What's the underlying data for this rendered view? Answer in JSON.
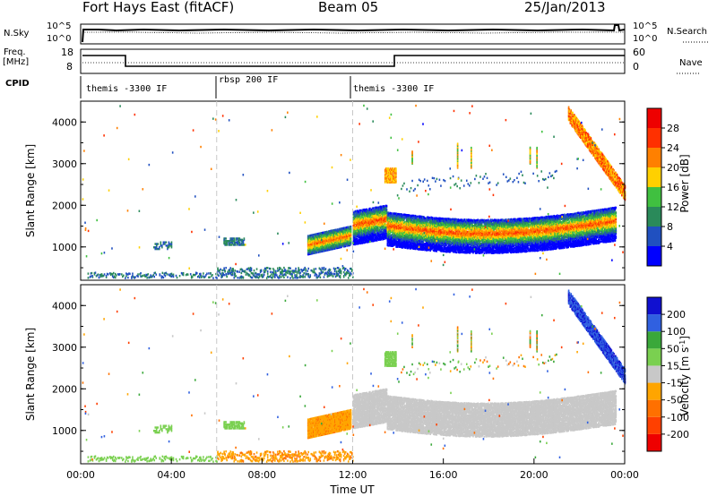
{
  "header": {
    "station": "Fort Hays East (fitACF)",
    "beam": "Beam 05",
    "date": "25/Jan/2013"
  },
  "panels": {
    "nsky_label": "N.Sky",
    "nsky_ticks": [
      "10^5",
      "10^0"
    ],
    "nsearch_label": "N.Search",
    "nsearch_ticks": [
      "10^5",
      "10^0"
    ],
    "freq_label_1": "Freq.",
    "freq_label_2": "[MHz]",
    "freq_ticks": [
      "18",
      "8"
    ],
    "nave_label": "Nave",
    "nave_ticks": [
      "60",
      "0"
    ],
    "cpid_label": "CPID",
    "cpid_segments": [
      {
        "label": "themis -3300 IF",
        "start_ut": 0,
        "end_ut": 6
      },
      {
        "label": "rbsp 200 IF",
        "start_ut": 6,
        "end_ut": 12
      },
      {
        "label": "themis -3300 IF",
        "start_ut": 12,
        "end_ut": 24
      }
    ]
  },
  "chart_data": [
    {
      "type": "heatmap",
      "xlabel": "",
      "ylabel": "Slant Range [km]",
      "xlim": [
        0,
        24
      ],
      "ylim": [
        200,
        4500
      ],
      "yticks": [
        "1000",
        "2000",
        "3000",
        "4000"
      ],
      "colorbar_label": "Power [dB]",
      "colorbar_ticks": [
        "4",
        "8",
        "12",
        "16",
        "20",
        "24",
        "28"
      ],
      "colorbar_colors": [
        "#0000ff",
        "#2050c0",
        "#2a8a5a",
        "#40c040",
        "#ffd000",
        "#ff8000",
        "#ff3000",
        "#ee0000"
      ],
      "features": [
        {
          "start_ut": 12.0,
          "end_ut": 23.6,
          "range_km": [
            1100,
            1900
          ],
          "peak_db": 28
        },
        {
          "start_ut": 10.0,
          "end_ut": 11.9,
          "range_km": [
            800,
            1400
          ],
          "peak_db": 24
        },
        {
          "start_ut": 21.5,
          "end_ut": 24.0,
          "range_km": [
            2200,
            4300
          ],
          "peak_db": 24
        }
      ]
    },
    {
      "type": "heatmap",
      "xlabel": "Time UT",
      "ylabel": "Slant Range [km]",
      "xlim": [
        0,
        24
      ],
      "ylim": [
        200,
        4500
      ],
      "xticks": [
        "00:00",
        "04:00",
        "08:00",
        "12:00",
        "16:00",
        "20:00",
        "00:00"
      ],
      "yticks": [
        "1000",
        "2000",
        "3000",
        "4000"
      ],
      "colorbar_label": "Velocity [m s",
      "colorbar_label_sup": "-1",
      "colorbar_label_end": "]",
      "colorbar_ticks": [
        "200",
        "100",
        "50",
        "15",
        "-15",
        "-50",
        "-100",
        "-200"
      ],
      "colorbar_colors": [
        "#1010d0",
        "#3060e0",
        "#3aa83a",
        "#7ad050",
        "#c8c8c8",
        "#ffa500",
        "#ff7000",
        "#ff4000",
        "#ee0000"
      ],
      "features": [
        {
          "start_ut": 12.0,
          "end_ut": 23.6,
          "range_km": [
            1100,
            1900
          ],
          "velocity_ms": 0
        },
        {
          "start_ut": 10.0,
          "end_ut": 11.9,
          "range_km": [
            800,
            1400
          ],
          "velocity_ms": -40
        },
        {
          "start_ut": 21.5,
          "end_ut": 24.0,
          "range_km": [
            2200,
            4300
          ],
          "velocity_ms": 200
        }
      ]
    }
  ]
}
